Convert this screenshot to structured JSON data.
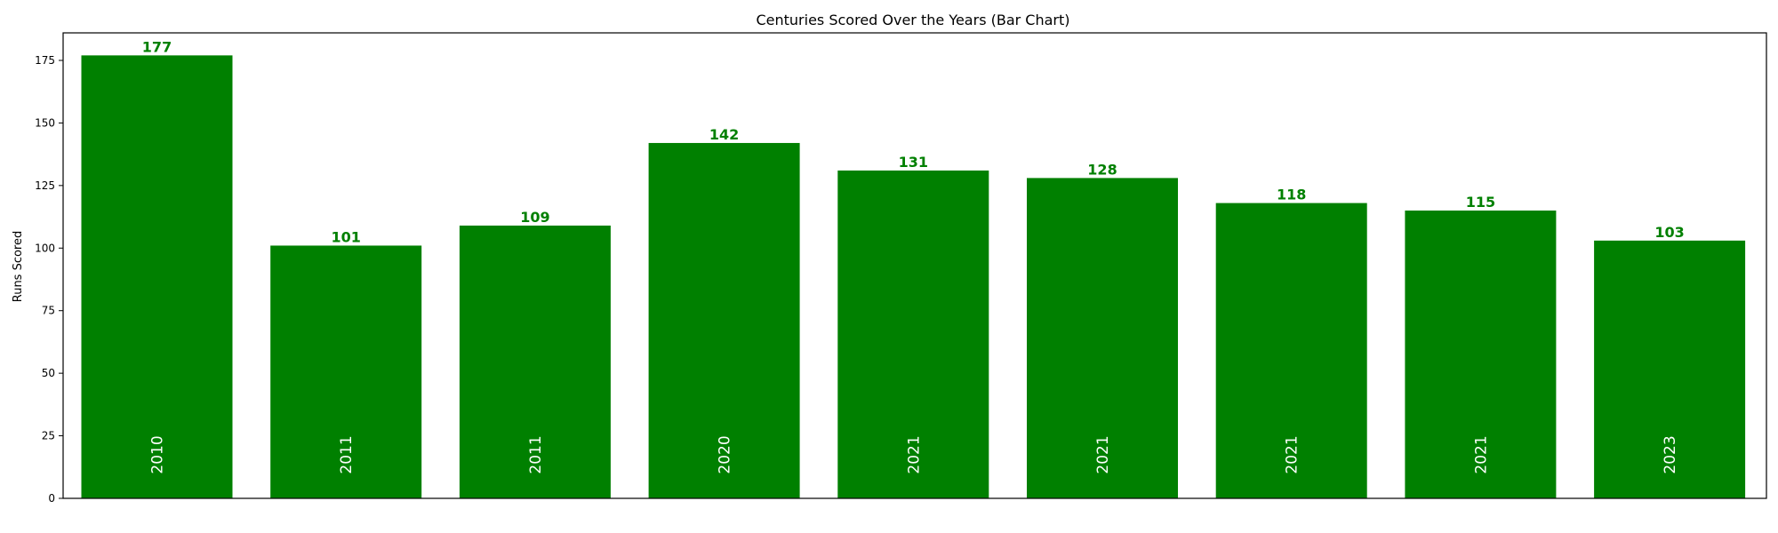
{
  "chart_data": {
    "type": "bar",
    "title": "Centuries Scored Over the Years (Bar Chart)",
    "xlabel": "",
    "ylabel": "Runs Scored",
    "categories": [
      "2010",
      "2011",
      "2011",
      "2020",
      "2021",
      "2021",
      "2021",
      "2021",
      "2023"
    ],
    "values": [
      177,
      101,
      109,
      142,
      131,
      128,
      118,
      115,
      103
    ],
    "ylim": [
      0,
      186
    ],
    "yticks": [
      0,
      25,
      50,
      75,
      100,
      125,
      150,
      175
    ],
    "xticks_visible": false,
    "grid": false,
    "legend": "none",
    "bar_color": "#008000",
    "value_label_color": "#008000",
    "category_label_color": "#ffffff"
  }
}
